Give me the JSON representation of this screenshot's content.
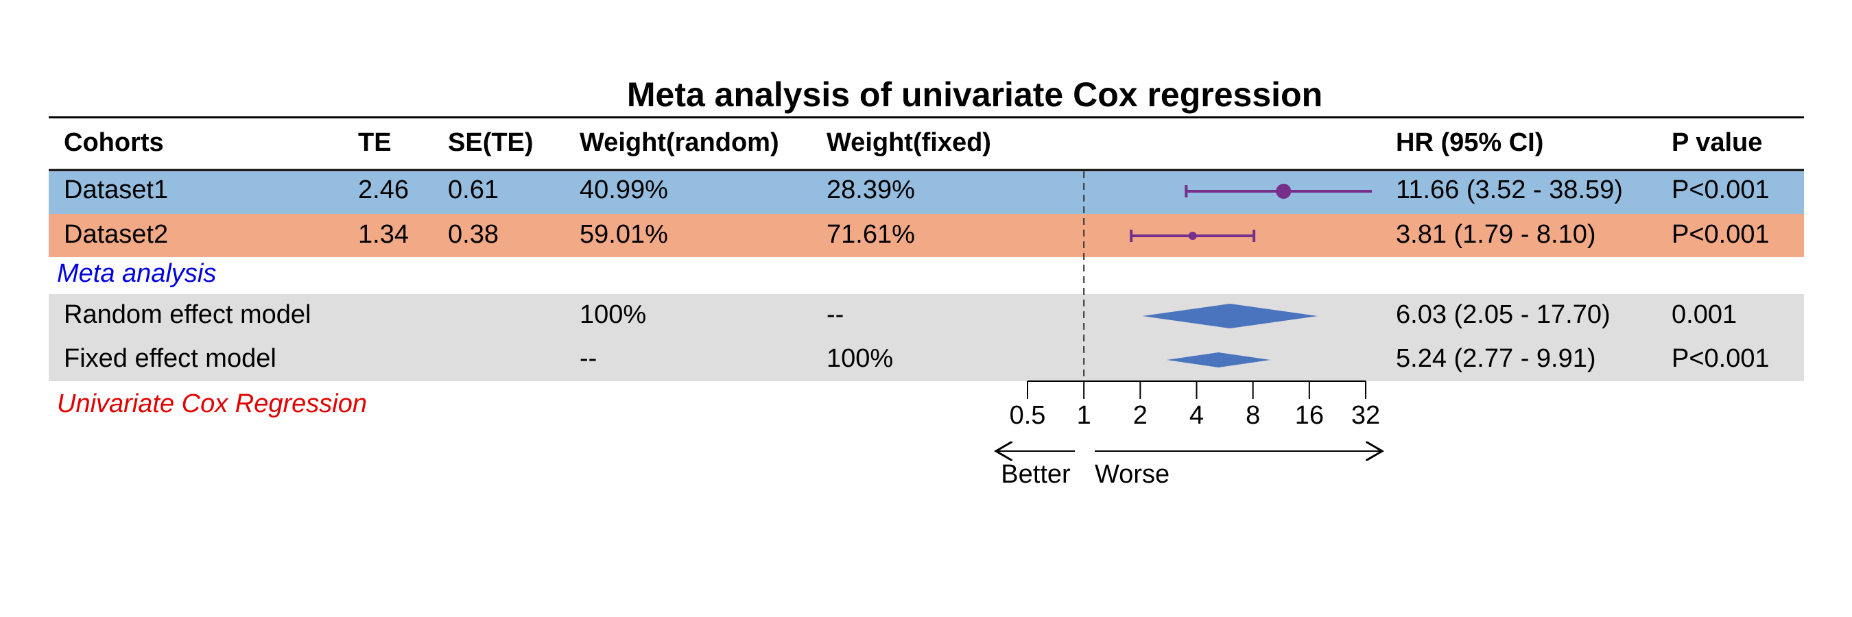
{
  "chart_data": {
    "type": "forest",
    "title": "Meta analysis of univariate Cox regression",
    "columns": [
      "Cohorts",
      "TE",
      "SE(TE)",
      "Weight(random)",
      "Weight(fixed)",
      "HR (95% CI)",
      "P value"
    ],
    "studies": [
      {
        "name": "Dataset1",
        "te": "2.46",
        "se": "0.61",
        "weight_random": "40.99%",
        "weight_fixed": "28.39%",
        "hr": 11.66,
        "ci": [
          3.52,
          38.59
        ],
        "hr_label": "11.66 (3.52 - 38.59)",
        "p": "P<0.001"
      },
      {
        "name": "Dataset2",
        "te": "1.34",
        "se": "0.38",
        "weight_random": "59.01%",
        "weight_fixed": "71.61%",
        "hr": 3.81,
        "ci": [
          1.79,
          8.1
        ],
        "hr_label": "3.81 (1.79 - 8.10)",
        "p": "P<0.001"
      }
    ],
    "section_label": "Meta analysis",
    "models": [
      {
        "name": "Random effect model",
        "weight_random": "100%",
        "weight_fixed": "--",
        "hr": 6.03,
        "ci": [
          2.05,
          17.7
        ],
        "hr_label": "6.03 (2.05 - 17.70)",
        "p": "0.001"
      },
      {
        "name": "Fixed effect model",
        "weight_random": "--",
        "weight_fixed": "100%",
        "hr": 5.24,
        "ci": [
          2.77,
          9.91
        ],
        "hr_label": "5.24 (2.77 - 9.91)",
        "p": "P<0.001"
      }
    ],
    "footnote": "Univariate Cox Regression",
    "xlim": [
      0.5,
      32
    ],
    "xticks": [
      0.5,
      1,
      2,
      4,
      8,
      16,
      32
    ],
    "log_scale": true,
    "reference": 1,
    "better_label": "Better",
    "worse_label": "Worse",
    "study_color": "#762f8a",
    "diamond_color": "#4a74bd"
  }
}
